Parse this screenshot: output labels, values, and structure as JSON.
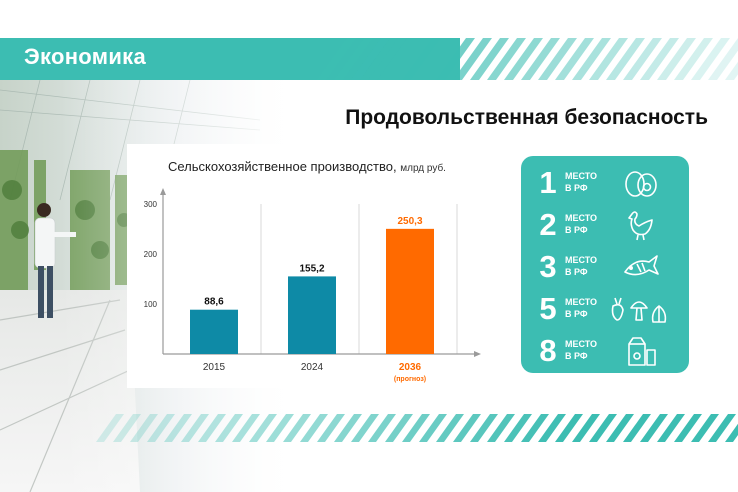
{
  "header": {
    "section": "Экономика",
    "headline": "Продовольственная безопасность"
  },
  "chart_data": {
    "type": "bar",
    "title": "Сельскохозяйственное производство,",
    "unit": "млрд руб.",
    "categories": [
      "2015",
      "2024",
      "2036"
    ],
    "category_notes": [
      "",
      "",
      "(прогноз)"
    ],
    "values": [
      88.6,
      155.2,
      250.3
    ],
    "value_labels": [
      "88,6",
      "155,2",
      "250,3"
    ],
    "bar_colors": [
      "#0e8aa6",
      "#0e8aa6",
      "#ff6a00"
    ],
    "yticks": [
      100,
      200,
      300
    ],
    "ylim": [
      0,
      300
    ],
    "grid": true,
    "xlabel": "",
    "ylabel": ""
  },
  "rankings": [
    {
      "number": "1",
      "line1": "МЕСТО",
      "line2": "В РФ",
      "icon": "egg-icon"
    },
    {
      "number": "2",
      "line1": "МЕСТО",
      "line2": "В РФ",
      "icon": "chicken-icon"
    },
    {
      "number": "3",
      "line1": "МЕСТО",
      "line2": "В РФ",
      "icon": "fish-icon"
    },
    {
      "number": "5",
      "line1": "МЕСТО",
      "line2": "В РФ",
      "icon": "vegetables-icon"
    },
    {
      "number": "8",
      "line1": "МЕСТО",
      "line2": "В РФ",
      "icon": "dairy-icon"
    }
  ],
  "colors": {
    "teal": "#3cbdb2",
    "bar_blue": "#0e8aa6",
    "bar_orange": "#ff6a00"
  }
}
